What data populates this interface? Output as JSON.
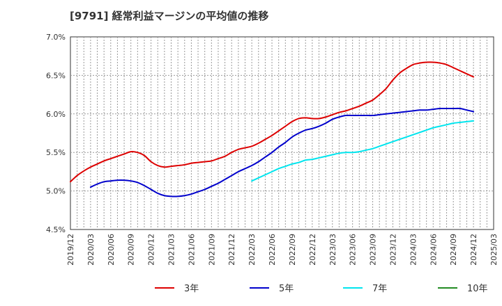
{
  "chart_data": {
    "type": "line",
    "title": "[9791]  経常利益マージンの平均値の推移",
    "xlabel": "",
    "ylabel": "",
    "y_unit": "%",
    "ylim": [
      4.5,
      7.0
    ],
    "yticks": [
      "4.5%",
      "5.0%",
      "5.5%",
      "6.0%",
      "6.5%",
      "7.0%"
    ],
    "yticks_values": [
      4.5,
      5.0,
      5.5,
      6.0,
      6.5,
      7.0
    ],
    "x_range": [
      "2019/12",
      "2025/03"
    ],
    "xticks": [
      "2019/12",
      "2020/03",
      "2020/06",
      "2020/09",
      "2020/12",
      "2021/03",
      "2021/06",
      "2021/09",
      "2021/12",
      "2022/03",
      "2022/06",
      "2022/09",
      "2022/12",
      "2023/03",
      "2023/06",
      "2023/09",
      "2023/12",
      "2024/03",
      "2024/06",
      "2024/09",
      "2024/12",
      "2025/03"
    ],
    "grid": true,
    "legend_position": "bottom",
    "series": [
      {
        "name": "3年",
        "color": "#dd0000",
        "points": [
          [
            "2019/12",
            5.12
          ],
          [
            "2020/01",
            5.2
          ],
          [
            "2020/02",
            5.26
          ],
          [
            "2020/03",
            5.31
          ],
          [
            "2020/04",
            5.35
          ],
          [
            "2020/05",
            5.39
          ],
          [
            "2020/06",
            5.42
          ],
          [
            "2020/07",
            5.45
          ],
          [
            "2020/08",
            5.48
          ],
          [
            "2020/09",
            5.51
          ],
          [
            "2020/10",
            5.5
          ],
          [
            "2020/11",
            5.46
          ],
          [
            "2020/12",
            5.38
          ],
          [
            "2021/01",
            5.33
          ],
          [
            "2021/02",
            5.31
          ],
          [
            "2021/03",
            5.32
          ],
          [
            "2021/04",
            5.33
          ],
          [
            "2021/05",
            5.34
          ],
          [
            "2021/06",
            5.36
          ],
          [
            "2021/07",
            5.37
          ],
          [
            "2021/08",
            5.38
          ],
          [
            "2021/09",
            5.39
          ],
          [
            "2021/10",
            5.42
          ],
          [
            "2021/11",
            5.45
          ],
          [
            "2021/12",
            5.5
          ],
          [
            "2022/01",
            5.54
          ],
          [
            "2022/02",
            5.56
          ],
          [
            "2022/03",
            5.58
          ],
          [
            "2022/04",
            5.62
          ],
          [
            "2022/05",
            5.67
          ],
          [
            "2022/06",
            5.72
          ],
          [
            "2022/07",
            5.78
          ],
          [
            "2022/08",
            5.84
          ],
          [
            "2022/09",
            5.9
          ],
          [
            "2022/10",
            5.94
          ],
          [
            "2022/11",
            5.95
          ],
          [
            "2022/12",
            5.94
          ],
          [
            "2023/01",
            5.94
          ],
          [
            "2023/02",
            5.96
          ],
          [
            "2023/03",
            5.99
          ],
          [
            "2023/04",
            6.02
          ],
          [
            "2023/05",
            6.04
          ],
          [
            "2023/06",
            6.07
          ],
          [
            "2023/07",
            6.1
          ],
          [
            "2023/08",
            6.14
          ],
          [
            "2023/09",
            6.18
          ],
          [
            "2023/10",
            6.25
          ],
          [
            "2023/11",
            6.33
          ],
          [
            "2023/12",
            6.44
          ],
          [
            "2024/01",
            6.53
          ],
          [
            "2024/02",
            6.59
          ],
          [
            "2024/03",
            6.64
          ],
          [
            "2024/04",
            6.66
          ],
          [
            "2024/05",
            6.67
          ],
          [
            "2024/06",
            6.67
          ],
          [
            "2024/07",
            6.66
          ],
          [
            "2024/08",
            6.64
          ],
          [
            "2024/09",
            6.6
          ],
          [
            "2024/10",
            6.56
          ],
          [
            "2024/11",
            6.52
          ],
          [
            "2024/12",
            6.48
          ]
        ]
      },
      {
        "name": "5年",
        "color": "#0000cc",
        "points": [
          [
            "2020/03",
            5.05
          ],
          [
            "2020/04",
            5.09
          ],
          [
            "2020/05",
            5.12
          ],
          [
            "2020/06",
            5.13
          ],
          [
            "2020/07",
            5.14
          ],
          [
            "2020/08",
            5.14
          ],
          [
            "2020/09",
            5.13
          ],
          [
            "2020/10",
            5.11
          ],
          [
            "2020/11",
            5.07
          ],
          [
            "2020/12",
            5.02
          ],
          [
            "2021/01",
            4.97
          ],
          [
            "2021/02",
            4.94
          ],
          [
            "2021/03",
            4.93
          ],
          [
            "2021/04",
            4.93
          ],
          [
            "2021/05",
            4.94
          ],
          [
            "2021/06",
            4.96
          ],
          [
            "2021/07",
            4.99
          ],
          [
            "2021/08",
            5.02
          ],
          [
            "2021/09",
            5.06
          ],
          [
            "2021/10",
            5.1
          ],
          [
            "2021/11",
            5.15
          ],
          [
            "2021/12",
            5.2
          ],
          [
            "2022/01",
            5.25
          ],
          [
            "2022/02",
            5.29
          ],
          [
            "2022/03",
            5.33
          ],
          [
            "2022/04",
            5.38
          ],
          [
            "2022/05",
            5.44
          ],
          [
            "2022/06",
            5.5
          ],
          [
            "2022/07",
            5.57
          ],
          [
            "2022/08",
            5.63
          ],
          [
            "2022/09",
            5.7
          ],
          [
            "2022/10",
            5.75
          ],
          [
            "2022/11",
            5.79
          ],
          [
            "2022/12",
            5.81
          ],
          [
            "2023/01",
            5.84
          ],
          [
            "2023/02",
            5.88
          ],
          [
            "2023/03",
            5.93
          ],
          [
            "2023/04",
            5.96
          ],
          [
            "2023/05",
            5.98
          ],
          [
            "2023/06",
            5.98
          ],
          [
            "2023/07",
            5.98
          ],
          [
            "2023/08",
            5.98
          ],
          [
            "2023/09",
            5.98
          ],
          [
            "2023/10",
            5.99
          ],
          [
            "2023/11",
            6.0
          ],
          [
            "2023/12",
            6.01
          ],
          [
            "2024/01",
            6.02
          ],
          [
            "2024/02",
            6.03
          ],
          [
            "2024/03",
            6.04
          ],
          [
            "2024/04",
            6.05
          ],
          [
            "2024/05",
            6.05
          ],
          [
            "2024/06",
            6.06
          ],
          [
            "2024/07",
            6.07
          ],
          [
            "2024/08",
            6.07
          ],
          [
            "2024/09",
            6.07
          ],
          [
            "2024/10",
            6.07
          ],
          [
            "2024/11",
            6.05
          ],
          [
            "2024/12",
            6.03
          ]
        ]
      },
      {
        "name": "7年",
        "color": "#00e5ee",
        "points": [
          [
            "2022/03",
            5.13
          ],
          [
            "2022/04",
            5.17
          ],
          [
            "2022/05",
            5.21
          ],
          [
            "2022/06",
            5.25
          ],
          [
            "2022/07",
            5.29
          ],
          [
            "2022/08",
            5.32
          ],
          [
            "2022/09",
            5.35
          ],
          [
            "2022/10",
            5.37
          ],
          [
            "2022/11",
            5.4
          ],
          [
            "2022/12",
            5.41
          ],
          [
            "2023/01",
            5.43
          ],
          [
            "2023/02",
            5.45
          ],
          [
            "2023/03",
            5.47
          ],
          [
            "2023/04",
            5.49
          ],
          [
            "2023/05",
            5.5
          ],
          [
            "2023/06",
            5.5
          ],
          [
            "2023/07",
            5.51
          ],
          [
            "2023/08",
            5.53
          ],
          [
            "2023/09",
            5.55
          ],
          [
            "2023/10",
            5.58
          ],
          [
            "2023/11",
            5.61
          ],
          [
            "2023/12",
            5.64
          ],
          [
            "2024/01",
            5.67
          ],
          [
            "2024/02",
            5.7
          ],
          [
            "2024/03",
            5.73
          ],
          [
            "2024/04",
            5.76
          ],
          [
            "2024/05",
            5.79
          ],
          [
            "2024/06",
            5.82
          ],
          [
            "2024/07",
            5.84
          ],
          [
            "2024/08",
            5.86
          ],
          [
            "2024/09",
            5.88
          ],
          [
            "2024/10",
            5.89
          ],
          [
            "2024/11",
            5.9
          ],
          [
            "2024/12",
            5.91
          ]
        ]
      },
      {
        "name": "10年",
        "color": "#228b22",
        "points": []
      }
    ]
  }
}
